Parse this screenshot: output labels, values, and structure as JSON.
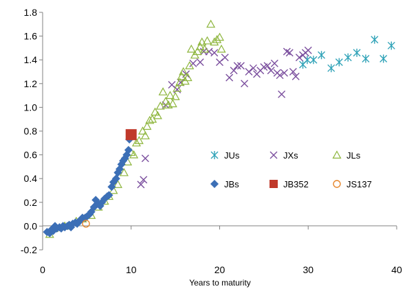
{
  "chart_data": {
    "type": "scatter",
    "title": "",
    "xlabel": "Years to maturity",
    "ylabel": "",
    "xlim": [
      0,
      40
    ],
    "ylim": [
      -0.2,
      1.8
    ],
    "x_ticks": [
      "0",
      "10",
      "20",
      "30",
      "40"
    ],
    "y_ticks": [
      "-0.2",
      "0.0",
      "0.2",
      "0.4",
      "0.6",
      "0.8",
      "1.0",
      "1.2",
      "1.4",
      "1.6",
      "1.8"
    ],
    "grid": false,
    "legend": "inside-right",
    "series": [
      {
        "name": "JUs",
        "marker": "asterisk",
        "color": "#31a3b8",
        "points": [
          [
            29.4,
            1.36
          ],
          [
            29.9,
            1.4
          ],
          [
            30.6,
            1.4
          ],
          [
            31.5,
            1.44
          ],
          [
            32.6,
            1.33
          ],
          [
            33.5,
            1.38
          ],
          [
            34.5,
            1.42
          ],
          [
            35.5,
            1.46
          ],
          [
            36.5,
            1.41
          ],
          [
            37.5,
            1.57
          ],
          [
            38.5,
            1.41
          ],
          [
            39.4,
            1.52
          ]
        ]
      },
      {
        "name": "JXs",
        "marker": "x",
        "color": "#7b4f9e",
        "points": [
          [
            11.1,
            0.35
          ],
          [
            11.4,
            0.39
          ],
          [
            11.6,
            0.57
          ],
          [
            13.9,
            1.02
          ],
          [
            14.6,
            1.19
          ],
          [
            15.2,
            1.15
          ],
          [
            15.6,
            1.21
          ],
          [
            16.2,
            1.28
          ],
          [
            17.0,
            1.37
          ],
          [
            17.8,
            1.38
          ],
          [
            18.2,
            1.47
          ],
          [
            18.8,
            1.47
          ],
          [
            19.4,
            1.46
          ],
          [
            20.0,
            1.38
          ],
          [
            20.6,
            1.42
          ],
          [
            21.1,
            1.25
          ],
          [
            21.6,
            1.31
          ],
          [
            22.0,
            1.35
          ],
          [
            22.4,
            1.35
          ],
          [
            22.8,
            1.2
          ],
          [
            23.3,
            1.3
          ],
          [
            23.8,
            1.33
          ],
          [
            24.2,
            1.28
          ],
          [
            24.6,
            1.31
          ],
          [
            25.0,
            1.34
          ],
          [
            25.4,
            1.35
          ],
          [
            25.8,
            1.31
          ],
          [
            26.2,
            1.37
          ],
          [
            26.5,
            1.29
          ],
          [
            26.8,
            1.27
          ],
          [
            27.0,
            1.11
          ],
          [
            27.3,
            1.29
          ],
          [
            27.6,
            1.47
          ],
          [
            27.9,
            1.46
          ],
          [
            28.3,
            1.3
          ],
          [
            28.6,
            1.26
          ],
          [
            29.0,
            1.42
          ],
          [
            29.4,
            1.44
          ],
          [
            29.7,
            1.46
          ],
          [
            30.0,
            1.48
          ]
        ]
      },
      {
        "name": "JLs",
        "marker": "triangle",
        "color": "#8db53c",
        "points": [
          [
            0.8,
            -0.07
          ],
          [
            1.3,
            -0.02
          ],
          [
            2.5,
            0.0
          ],
          [
            3.8,
            0.04
          ],
          [
            4.5,
            0.06
          ],
          [
            5.5,
            0.09
          ],
          [
            6.3,
            0.16
          ],
          [
            7.0,
            0.21
          ],
          [
            7.5,
            0.25
          ],
          [
            8.0,
            0.3
          ],
          [
            8.5,
            0.35
          ],
          [
            9.2,
            0.45
          ],
          [
            9.6,
            0.54
          ],
          [
            10.0,
            0.62
          ],
          [
            10.3,
            0.6
          ],
          [
            10.6,
            0.7
          ],
          [
            10.9,
            0.72
          ],
          [
            11.3,
            0.8
          ],
          [
            11.6,
            0.76
          ],
          [
            11.8,
            0.84
          ],
          [
            12.1,
            0.89
          ],
          [
            12.4,
            0.9
          ],
          [
            12.7,
            0.96
          ],
          [
            13.0,
            0.93
          ],
          [
            13.3,
            1.01
          ],
          [
            13.6,
            1.13
          ],
          [
            13.9,
            1.05
          ],
          [
            14.2,
            1.02
          ],
          [
            14.4,
            1.1
          ],
          [
            14.7,
            1.03
          ],
          [
            15.0,
            1.09
          ],
          [
            15.2,
            1.16
          ],
          [
            15.5,
            1.21
          ],
          [
            15.7,
            1.26
          ],
          [
            15.9,
            1.3
          ],
          [
            16.1,
            1.22
          ],
          [
            16.4,
            1.25
          ],
          [
            16.6,
            1.35
          ],
          [
            16.8,
            1.49
          ],
          [
            17.2,
            1.44
          ],
          [
            17.5,
            1.47
          ],
          [
            17.8,
            1.51
          ],
          [
            18.0,
            1.55
          ],
          [
            18.3,
            1.49
          ],
          [
            18.6,
            1.56
          ],
          [
            19.0,
            1.7
          ],
          [
            19.4,
            1.55
          ],
          [
            19.7,
            1.57
          ],
          [
            20.0,
            1.59
          ],
          [
            20.2,
            1.49
          ]
        ]
      },
      {
        "name": "JBs",
        "marker": "diamond",
        "color": "#3c6fb6",
        "points": [
          [
            0.5,
            -0.05
          ],
          [
            0.8,
            -0.06
          ],
          [
            1.0,
            -0.03
          ],
          [
            1.2,
            -0.04
          ],
          [
            1.4,
            0.0
          ],
          [
            1.6,
            -0.02
          ],
          [
            1.9,
            -0.01
          ],
          [
            2.1,
            -0.02
          ],
          [
            2.3,
            0.0
          ],
          [
            2.5,
            -0.01
          ],
          [
            2.8,
            0.0
          ],
          [
            3.0,
            0.01
          ],
          [
            3.2,
            -0.01
          ],
          [
            3.4,
            0.02
          ],
          [
            3.7,
            0.03
          ],
          [
            3.9,
            0.02
          ],
          [
            4.1,
            0.04
          ],
          [
            4.3,
            0.05
          ],
          [
            4.5,
            0.07
          ],
          [
            4.8,
            0.07
          ],
          [
            5.0,
            0.08
          ],
          [
            5.3,
            0.1
          ],
          [
            5.5,
            0.12
          ],
          [
            5.8,
            0.16
          ],
          [
            6.0,
            0.22
          ],
          [
            6.2,
            0.19
          ],
          [
            6.5,
            0.17
          ],
          [
            6.7,
            0.2
          ],
          [
            7.0,
            0.23
          ],
          [
            7.3,
            0.25
          ],
          [
            7.5,
            0.26
          ],
          [
            7.8,
            0.33
          ],
          [
            8.0,
            0.37
          ],
          [
            8.3,
            0.4
          ],
          [
            8.5,
            0.45
          ],
          [
            8.7,
            0.48
          ],
          [
            8.9,
            0.52
          ],
          [
            9.1,
            0.55
          ],
          [
            9.3,
            0.57
          ],
          [
            9.5,
            0.6
          ],
          [
            9.7,
            0.64
          ],
          [
            9.8,
            0.73
          ],
          [
            10.0,
            0.76
          ]
        ]
      },
      {
        "name": "JB352",
        "marker": "square",
        "color": "#c0392b",
        "points": [
          [
            10.0,
            0.77
          ]
        ]
      },
      {
        "name": "JS137",
        "marker": "circle-open",
        "color": "#e6862c",
        "points": [
          [
            4.9,
            0.02
          ]
        ]
      }
    ]
  }
}
